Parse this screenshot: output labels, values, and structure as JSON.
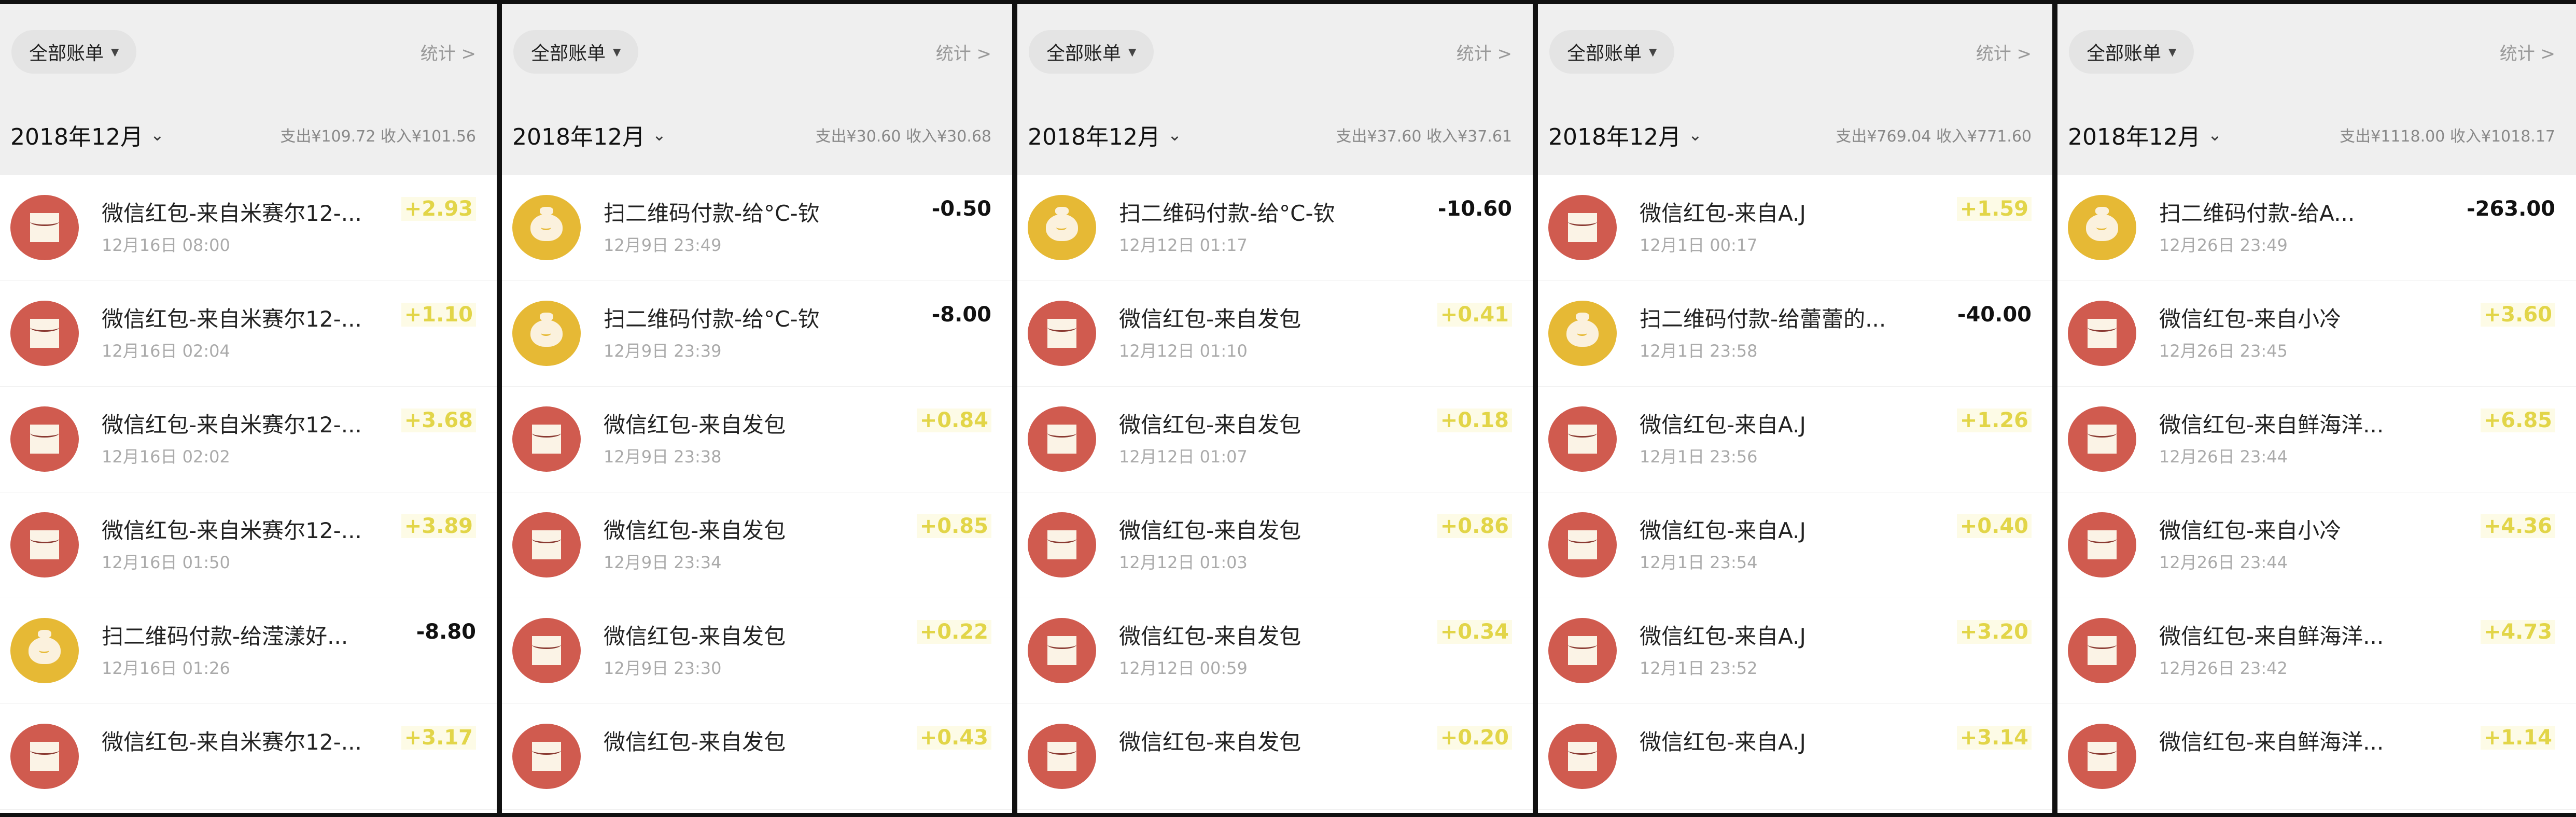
{
  "colors": {
    "income": "#e2d548",
    "expense": "#111111",
    "red_packet_icon": "#d05b4f",
    "qr_pay_icon": "#e6b935",
    "header_bg": "#efefef"
  },
  "panels": [
    {
      "filter": "全部账单",
      "stats": "统计 >",
      "month": "2018年12月",
      "summary": "支出¥109.72  收入¥101.56",
      "items": [
        {
          "icon": "red-packet",
          "title": "微信红包-来自米赛尔12-...",
          "date": "12月16日 08:00",
          "amount": "+2.93",
          "type": "in"
        },
        {
          "icon": "red-packet",
          "title": "微信红包-来自米赛尔12-...",
          "date": "12月16日 02:04",
          "amount": "+1.10",
          "type": "in"
        },
        {
          "icon": "red-packet",
          "title": "微信红包-来自米赛尔12-...",
          "date": "12月16日 02:02",
          "amount": "+3.68",
          "type": "in"
        },
        {
          "icon": "red-packet",
          "title": "微信红包-来自米赛尔12-...",
          "date": "12月16日 01:50",
          "amount": "+3.89",
          "type": "in"
        },
        {
          "icon": "qr-pay",
          "title": "扫二维码付款-给滢漾好...",
          "date": "12月16日 01:26",
          "amount": "-8.80",
          "type": "out"
        },
        {
          "icon": "red-packet",
          "title": "微信红包-来自米赛尔12-...",
          "date": "",
          "amount": "+3.17",
          "type": "in"
        }
      ]
    },
    {
      "filter": "全部账单",
      "stats": "统计 >",
      "month": "2018年12月",
      "summary": "支出¥30.60  收入¥30.68",
      "items": [
        {
          "icon": "qr-pay",
          "title": "扫二维码付款-给°C-钦",
          "date": "12月9日 23:49",
          "amount": "-0.50",
          "type": "out"
        },
        {
          "icon": "qr-pay",
          "title": "扫二维码付款-给°C-钦",
          "date": "12月9日 23:39",
          "amount": "-8.00",
          "type": "out"
        },
        {
          "icon": "red-packet",
          "title": "微信红包-来自发包",
          "date": "12月9日 23:38",
          "amount": "+0.84",
          "type": "in"
        },
        {
          "icon": "red-packet",
          "title": "微信红包-来自发包",
          "date": "12月9日 23:34",
          "amount": "+0.85",
          "type": "in"
        },
        {
          "icon": "red-packet",
          "title": "微信红包-来自发包",
          "date": "12月9日 23:30",
          "amount": "+0.22",
          "type": "in"
        },
        {
          "icon": "red-packet",
          "title": "微信红包-来自发包",
          "date": "",
          "amount": "+0.43",
          "type": "in"
        }
      ]
    },
    {
      "filter": "全部账单",
      "stats": "统计 >",
      "month": "2018年12月",
      "summary": "支出¥37.60  收入¥37.61",
      "items": [
        {
          "icon": "qr-pay",
          "title": "扫二维码付款-给°C-钦",
          "date": "12月12日 01:17",
          "amount": "-10.60",
          "type": "out"
        },
        {
          "icon": "red-packet",
          "title": "微信红包-来自发包",
          "date": "12月12日 01:10",
          "amount": "+0.41",
          "type": "in"
        },
        {
          "icon": "red-packet",
          "title": "微信红包-来自发包",
          "date": "12月12日 01:07",
          "amount": "+0.18",
          "type": "in"
        },
        {
          "icon": "red-packet",
          "title": "微信红包-来自发包",
          "date": "12月12日 01:03",
          "amount": "+0.86",
          "type": "in"
        },
        {
          "icon": "red-packet",
          "title": "微信红包-来自发包",
          "date": "12月12日 00:59",
          "amount": "+0.34",
          "type": "in"
        },
        {
          "icon": "red-packet",
          "title": "微信红包-来自发包",
          "date": "",
          "amount": "+0.20",
          "type": "in"
        }
      ]
    },
    {
      "filter": "全部账单",
      "stats": "统计 >",
      "month": "2018年12月",
      "summary": "支出¥769.04  收入¥771.60",
      "items": [
        {
          "icon": "red-packet",
          "title": "微信红包-来自A.J",
          "date": "12月1日 00:17",
          "amount": "+1.59",
          "type": "in"
        },
        {
          "icon": "qr-pay",
          "title": "扫二维码付款-给蕾蕾的...",
          "date": "12月1日 23:58",
          "amount": "-40.00",
          "type": "out"
        },
        {
          "icon": "red-packet",
          "title": "微信红包-来自A.J",
          "date": "12月1日 23:56",
          "amount": "+1.26",
          "type": "in"
        },
        {
          "icon": "red-packet",
          "title": "微信红包-来自A.J",
          "date": "12月1日 23:54",
          "amount": "+0.40",
          "type": "in"
        },
        {
          "icon": "red-packet",
          "title": "微信红包-来自A.J",
          "date": "12月1日 23:52",
          "amount": "+3.20",
          "type": "in"
        },
        {
          "icon": "red-packet",
          "title": "微信红包-来自A.J",
          "date": "",
          "amount": "+3.14",
          "type": "in"
        }
      ]
    },
    {
      "filter": "全部账单",
      "stats": "统计 >",
      "month": "2018年12月",
      "summary": "支出¥1118.00  收入¥1018.17",
      "items": [
        {
          "icon": "qr-pay",
          "title": "扫二维码付款-给A...",
          "date": "12月26日 23:49",
          "amount": "-263.00",
          "type": "out"
        },
        {
          "icon": "red-packet",
          "title": "微信红包-来自小冷",
          "date": "12月26日 23:45",
          "amount": "+3.60",
          "type": "in"
        },
        {
          "icon": "red-packet",
          "title": "微信红包-来自鲜海洋...",
          "date": "12月26日 23:44",
          "amount": "+6.85",
          "type": "in"
        },
        {
          "icon": "red-packet",
          "title": "微信红包-来自小冷",
          "date": "12月26日 23:44",
          "amount": "+4.36",
          "type": "in"
        },
        {
          "icon": "red-packet",
          "title": "微信红包-来自鲜海洋...",
          "date": "12月26日 23:42",
          "amount": "+4.73",
          "type": "in"
        },
        {
          "icon": "red-packet",
          "title": "微信红包-来自鲜海洋...",
          "date": "",
          "amount": "+1.14",
          "type": "in"
        }
      ]
    }
  ]
}
